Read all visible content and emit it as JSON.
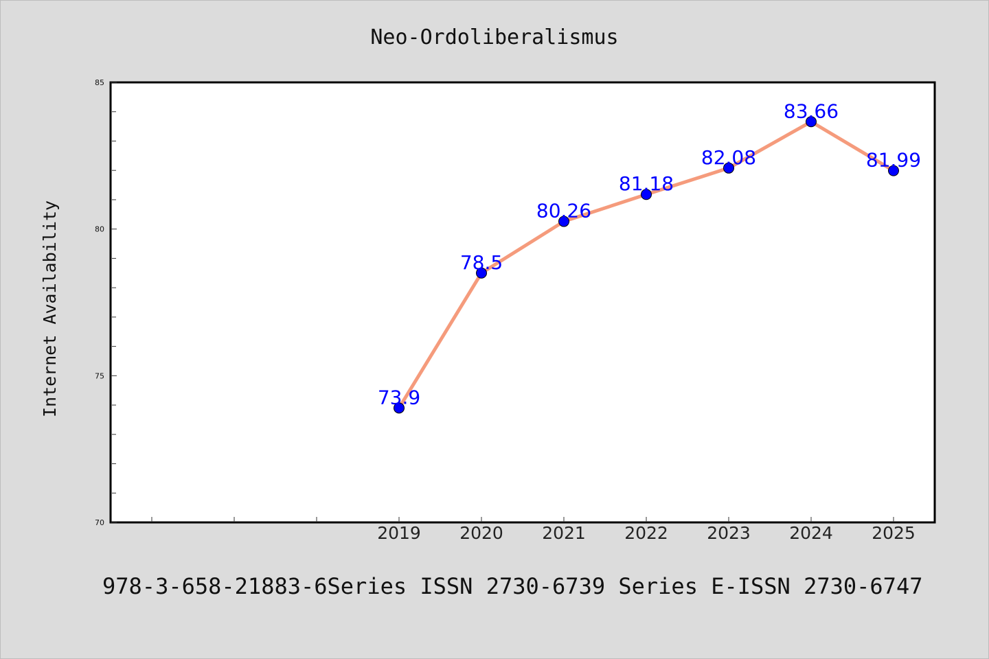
{
  "chart_data": {
    "type": "line",
    "title": "Neo-Ordoliberalismus",
    "xlabel": "",
    "ylabel": "Internet Availability",
    "categories": [
      "2019",
      "2020",
      "2021",
      "2022",
      "2023",
      "2024",
      "2025"
    ],
    "series": [
      {
        "values": [
          73.9,
          78.5,
          80.26,
          81.18,
          82.08,
          83.66,
          81.99
        ],
        "data_labels": [
          "73.9",
          "78.5",
          "80.26",
          "81.18",
          "82.08",
          "83.66",
          "81.99"
        ]
      }
    ],
    "ylim": [
      70,
      85
    ],
    "y_ticks": [
      "70",
      "75",
      "80",
      "85"
    ],
    "grid": false,
    "legend": "none",
    "colors": {
      "line": "#f59b7c",
      "marker": "#0000ff",
      "data_label": "#0000ff",
      "background": "#dcdcdc",
      "plot_area": "#ffffff"
    }
  },
  "footer": {
    "text": "978-3-658-21883-6Series ISSN 2730-6739 Series E-ISSN 2730-6747"
  }
}
